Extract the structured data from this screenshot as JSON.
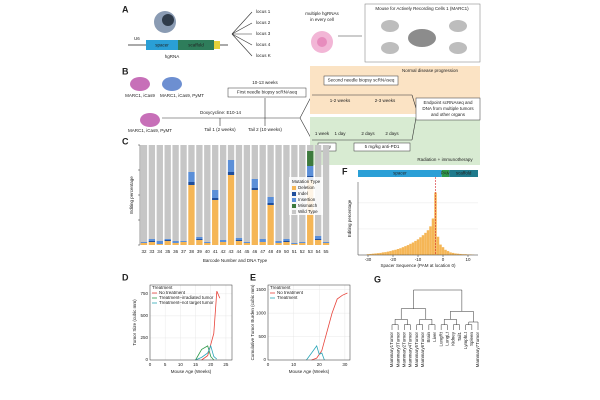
{
  "panel_a": {
    "label": "A",
    "u6": "U6",
    "spacer": "spacer",
    "scaffold": "scaffold",
    "hgrna": "hgRNA",
    "loci": [
      "locus 1",
      "locus 2",
      "locus 3",
      "locus 4",
      "locus K"
    ],
    "cell_text": [
      "multiple hgRNAs",
      "in every cell"
    ],
    "mouse_title": "Mouse for Actively Recording Cells 1 (MARC1)"
  },
  "panel_b": {
    "label": "B",
    "parent1": "MARC1, iCas9",
    "parent2": "MARC1, iCas9, PyMT",
    "child": "MARC1, iCas9, PyMT",
    "dox": "Doxycycline: E10-14",
    "weeks": "10-13 weeks",
    "biopsy1": "First needle biopsy scRNAseq",
    "tail1": "Tail 1 (2 weeks)",
    "tail2": "Tail 2 (10 weeks)",
    "normal": "Normal disease progression",
    "biopsy2": "Second needle biopsy scRNAseq",
    "w12": "1-2 weeks",
    "w23": "2-3 weeks",
    "endpoint": [
      "Endpoint scRNAseq and",
      "DNA from multiple tumors",
      "and other organs"
    ],
    "steps": [
      "1 week",
      "1 day",
      "2 days",
      "2 days"
    ],
    "gy": "5Gy",
    "pd1": "5 mg/kg anti-PD1",
    "therapy": "Radiation + immunotherapy"
  },
  "panel_g": {
    "label": "G",
    "leaves": [
      "Mammary1Tumor",
      "Mammary3Tumor",
      "Mammary2Tumor",
      "Mammary4Tumor",
      "Mammary5Tumor",
      "Mammary6Tumor",
      "Brain",
      "Liver",
      "LungRt",
      "LungLt",
      "Kidney",
      "Tail1",
      "LymphLt",
      "Spleen",
      "Mammary7Tumor"
    ]
  },
  "chart_data": [
    {
      "type": "stacked_bar",
      "panel": "C",
      "ylabel": "Editing percentage",
      "xlabel": "Barcode Number and DNA Type",
      "legend_title": "Mutation Type",
      "categories": [
        "32",
        "33",
        "34",
        "35",
        "36",
        "37",
        "38",
        "39",
        "40",
        "41",
        "42",
        "43",
        "44",
        "45",
        "46",
        "47",
        "48",
        "49",
        "50",
        "51",
        "52",
        "53",
        "54",
        "55"
      ],
      "ylim": [
        0,
        100
      ],
      "yticks": [
        0,
        25,
        50,
        75,
        100
      ],
      "series": [
        {
          "name": "Deletion",
          "color": "#f5b656",
          "values": [
            2,
            3,
            1,
            4,
            2,
            3,
            60,
            5,
            2,
            45,
            3,
            70,
            4,
            2,
            55,
            3,
            40,
            2,
            3,
            1,
            2,
            65,
            5,
            2
          ]
        },
        {
          "name": "Indel",
          "color": "#1f4e9c",
          "values": [
            0,
            1,
            0,
            1,
            0,
            0,
            3,
            1,
            0,
            2,
            0,
            3,
            1,
            0,
            2,
            0,
            2,
            0,
            1,
            0,
            0,
            4,
            1,
            0
          ]
        },
        {
          "name": "Insertion",
          "color": "#5b8fd8",
          "values": [
            1,
            2,
            3,
            1,
            2,
            1,
            10,
            2,
            1,
            8,
            2,
            12,
            2,
            1,
            9,
            3,
            6,
            2,
            2,
            1,
            1,
            10,
            3,
            1
          ]
        },
        {
          "name": "Mismatch",
          "color": "#3d7a3d",
          "values": [
            0,
            0,
            0,
            0,
            0,
            0,
            0,
            0,
            0,
            0,
            0,
            0,
            0,
            0,
            0,
            0,
            0,
            0,
            0,
            0,
            0,
            15,
            0,
            0
          ]
        },
        {
          "name": "Wild Type",
          "color": "#c6c6c6",
          "values": [
            97,
            94,
            96,
            94,
            96,
            96,
            27,
            92,
            97,
            45,
            95,
            15,
            93,
            97,
            34,
            94,
            52,
            96,
            94,
            98,
            97,
            6,
            91,
            97
          ]
        }
      ]
    },
    {
      "type": "histogram",
      "panel": "F",
      "ylabel": "Editing percentage",
      "xlabel": "Spacer Sequence (PAM at location 0)",
      "header": [
        "spacer",
        "PAM",
        "scaffold"
      ],
      "color": "#f5b656",
      "x": [
        -30,
        -29,
        -28,
        -27,
        -26,
        -25,
        -24,
        -23,
        -22,
        -21,
        -20,
        -19,
        -18,
        -17,
        -16,
        -15,
        -14,
        -13,
        -12,
        -11,
        -10,
        -9,
        -8,
        -7,
        -6,
        -5,
        -4,
        -3,
        -2,
        -1,
        0,
        1,
        2,
        3,
        4,
        5,
        6,
        7,
        8,
        9,
        10,
        11,
        12
      ],
      "values": [
        0.3,
        0.4,
        0.5,
        0.6,
        0.7,
        0.8,
        1,
        1.1,
        1.3,
        1.5,
        1.8,
        2,
        2.3,
        2.6,
        3,
        3.4,
        3.8,
        4.3,
        4.8,
        5.4,
        6,
        6.8,
        7.6,
        8.5,
        9.5,
        11,
        14,
        24,
        7,
        4,
        3,
        2,
        1.5,
        1,
        0.8,
        0.6,
        0.5,
        0.4,
        0.3,
        0.3,
        0.2,
        0.2,
        0.1
      ],
      "cut_site": -3,
      "xlim": [
        -34,
        14
      ],
      "xticks": [
        -30,
        -20,
        -10,
        0,
        10
      ],
      "ylim": [
        0,
        28
      ],
      "yticks": [
        0,
        10,
        20
      ],
      "grid": true
    },
    {
      "type": "line",
      "panel": "D",
      "ylabel": "Tumor Size (cubic mm)",
      "xlabel": "Mouse Age (Weeks)",
      "legend_title": "Treatment",
      "xlim": [
        0,
        27
      ],
      "xticks": [
        0,
        5,
        10,
        15,
        20,
        25
      ],
      "ylim": [
        0,
        850
      ],
      "yticks": [
        0,
        250,
        500,
        750
      ],
      "grid": true,
      "series": [
        {
          "name": "No treatment",
          "color": "#e8453c",
          "x": [
            17,
            19,
            21,
            22,
            23
          ],
          "values": [
            0,
            50,
            300,
            780,
            700
          ]
        },
        {
          "name": "Treatment–irradiated tumor",
          "color": "#2e9a4a",
          "x": [
            15,
            17,
            19,
            20,
            21
          ],
          "values": [
            0,
            120,
            160,
            40,
            0
          ]
        },
        {
          "name": "Treatment–not target tumor",
          "color": "#2aa6b8",
          "x": [
            15,
            17,
            19,
            20,
            21,
            22
          ],
          "values": [
            0,
            30,
            80,
            160,
            40,
            10
          ]
        }
      ]
    },
    {
      "type": "line",
      "panel": "E",
      "ylabel": "Cumulative Tumor Burden (cubic mm)",
      "xlabel": "Mouse Age (Weeks)",
      "legend_title": "Treatment",
      "xlim": [
        0,
        32
      ],
      "xticks": [
        0,
        10,
        20,
        30
      ],
      "ylim": [
        0,
        1600
      ],
      "yticks": [
        0,
        500,
        1000,
        1500
      ],
      "grid": true,
      "series": [
        {
          "name": "No treatment",
          "color": "#e8453c",
          "x": [
            17,
            19,
            21,
            23,
            25,
            27,
            29,
            31
          ],
          "values": [
            0,
            40,
            200,
            600,
            1000,
            1300,
            1380,
            1430
          ]
        },
        {
          "name": "Treatment",
          "color": "#2aa6b8",
          "x": [
            15,
            17,
            19,
            20,
            21,
            22
          ],
          "values": [
            0,
            150,
            300,
            120,
            150,
            0
          ]
        }
      ]
    }
  ]
}
